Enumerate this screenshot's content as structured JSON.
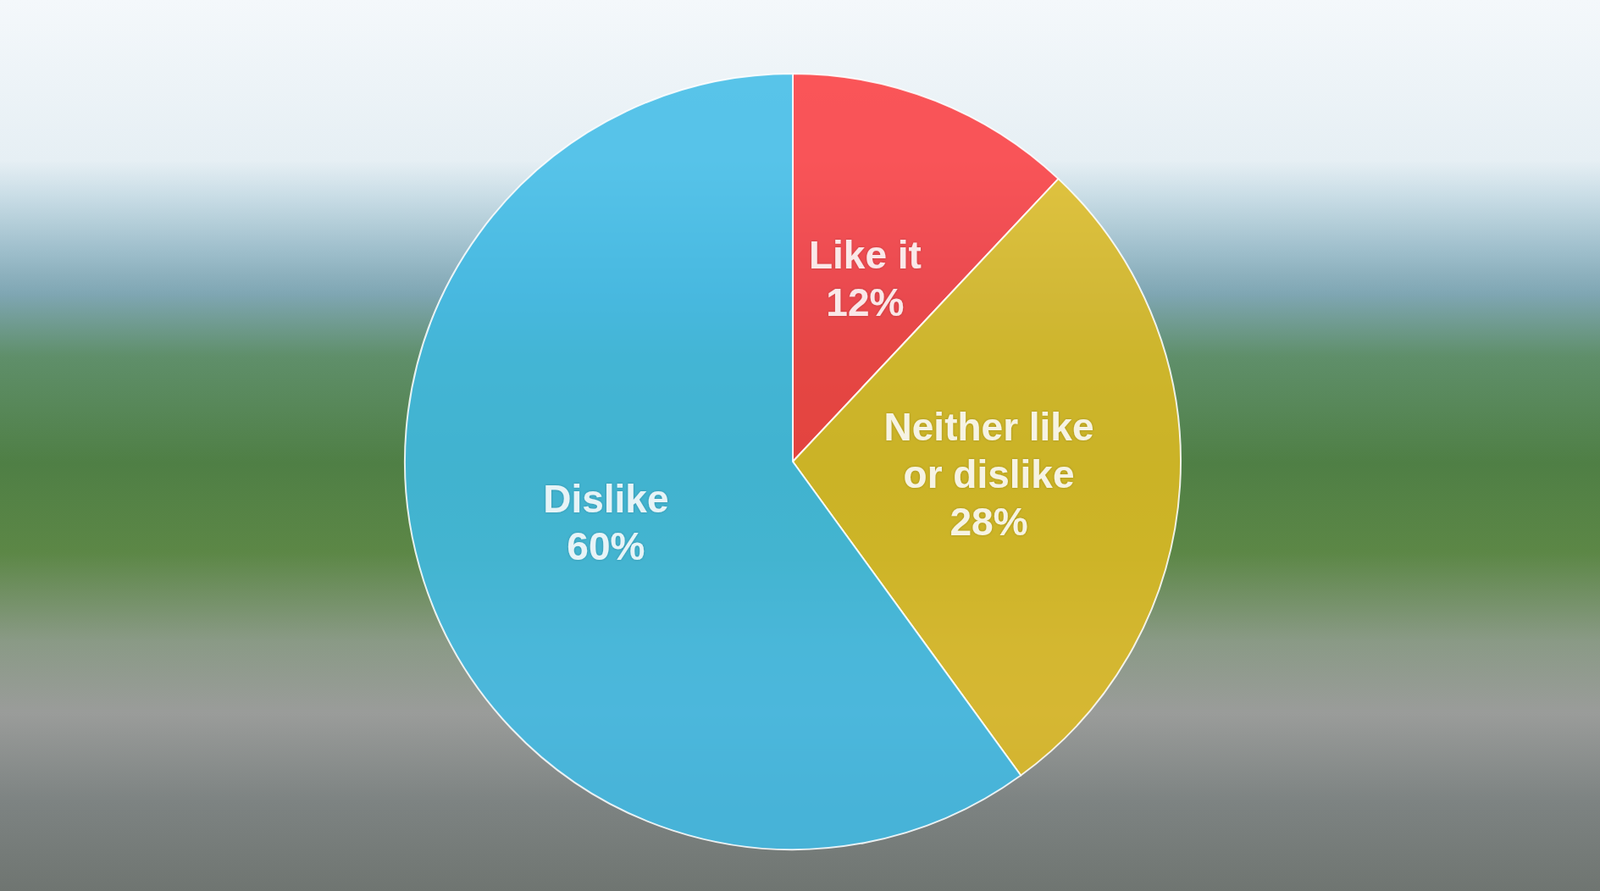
{
  "chart_data": {
    "type": "pie",
    "categories": [
      "Like it",
      "Neither like or dislike",
      "Dislike"
    ],
    "values": [
      12,
      28,
      60
    ],
    "value_labels": [
      "12%",
      "28%",
      "60%"
    ],
    "colors": [
      "#fb3a3e",
      "#e0bb22",
      "#3fbce6"
    ],
    "data_labels": true
  }
}
